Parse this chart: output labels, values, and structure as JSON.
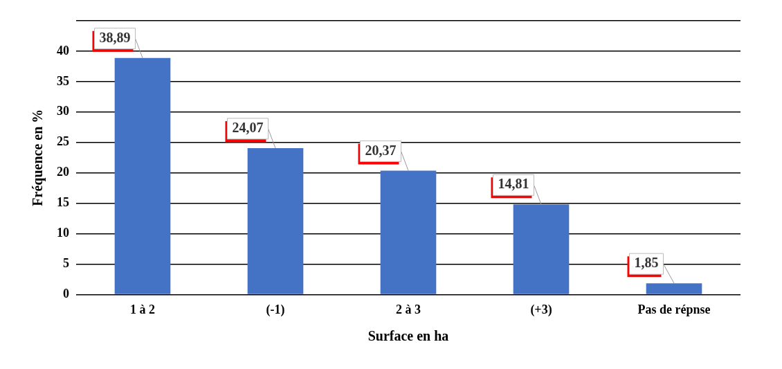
{
  "chart_data": {
    "type": "bar",
    "xlabel": "Surface en ha",
    "ylabel": "Fréquence en %",
    "categories": [
      "1 à 2",
      "(-1)",
      "2 à 3",
      "(+3)",
      "Pas de répnse"
    ],
    "values": [
      38.89,
      24.07,
      20.37,
      14.81,
      1.85
    ],
    "value_labels": [
      "38,89",
      "24,07",
      "20,37",
      "14,81",
      "1,85"
    ],
    "color": "#4472c4",
    "ylim": [
      0,
      45
    ],
    "yticks": [
      0,
      5,
      10,
      15,
      20,
      25,
      30,
      35,
      40,
      {
        "value": 45,
        "label": null
      }
    ],
    "grid": "y",
    "legend": false
  }
}
